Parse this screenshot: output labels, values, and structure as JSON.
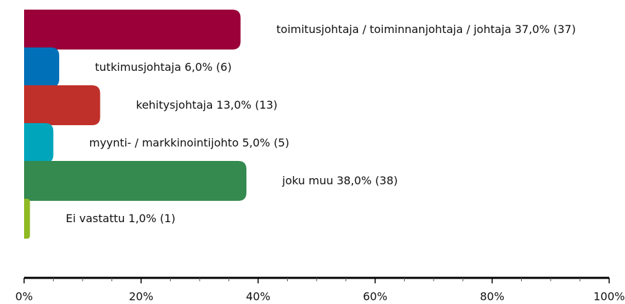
{
  "chart_data": {
    "type": "hbar",
    "categories": [
      "toimitusjohtaja / toiminnanjohtaja / johtaja",
      "tutkimusjohtaja",
      "kehitysjohtaja",
      "myynti- / markkinointijohto",
      "joku muu",
      "Ei vastattu"
    ],
    "values": [
      37,
      6,
      13,
      5,
      38,
      1
    ],
    "value_labels": [
      "37,0% (37)",
      "6,0% (6)",
      "13,0% (13)",
      "5,0% (5)",
      "38,0% (38)",
      "1,0% (1)"
    ],
    "colors": [
      "#9b0039",
      "#0070b8",
      "#c0302a",
      "#00a5bc",
      "#358a4f",
      "#8fba23"
    ],
    "xlim": [
      0,
      100
    ],
    "xticks": [
      {
        "value": 0,
        "label": "0%"
      },
      {
        "value": 20,
        "label": "20%"
      },
      {
        "value": 40,
        "label": "40%"
      },
      {
        "value": 60,
        "label": "60%"
      },
      {
        "value": 80,
        "label": "80%"
      },
      {
        "value": 100,
        "label": "100%"
      }
    ],
    "xticks_minor": [
      5,
      10,
      15,
      25,
      30,
      35,
      45,
      50,
      55,
      65,
      70,
      75,
      85,
      90,
      95
    ]
  }
}
